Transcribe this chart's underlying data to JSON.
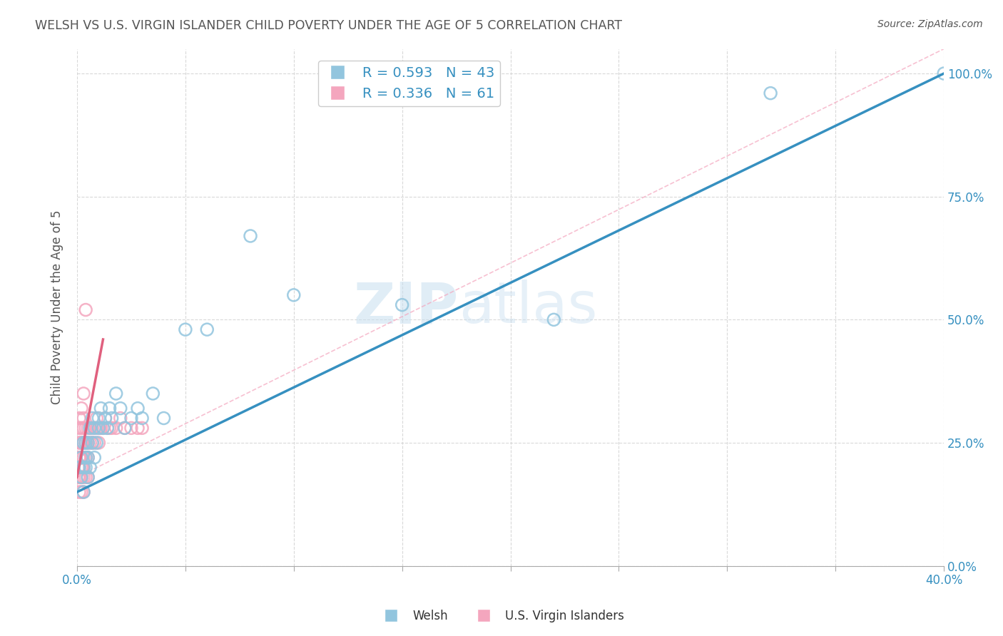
{
  "title": "WELSH VS U.S. VIRGIN ISLANDER CHILD POVERTY UNDER THE AGE OF 5 CORRELATION CHART",
  "source": "Source: ZipAtlas.com",
  "ylabel": "Child Poverty Under the Age of 5",
  "xlim": [
    0.0,
    0.4
  ],
  "ylim": [
    0.0,
    1.05
  ],
  "xticks": [
    0.0,
    0.05,
    0.1,
    0.15,
    0.2,
    0.25,
    0.3,
    0.35,
    0.4
  ],
  "yticks": [
    0.0,
    0.25,
    0.5,
    0.75,
    1.0
  ],
  "ytick_labels": [
    "0.0%",
    "25.0%",
    "50.0%",
    "75.0%",
    "100.0%"
  ],
  "xtick_labels": [
    "0.0%",
    "",
    "",
    "",
    "",
    "",
    "",
    "",
    "40.0%"
  ],
  "welsh_R": 0.593,
  "welsh_N": 43,
  "vi_R": 0.336,
  "vi_N": 61,
  "welsh_color": "#92c5de",
  "vi_color": "#f4a6be",
  "welsh_line_color": "#3690c0",
  "vi_line_color": "#e0607e",
  "vi_dashed_color": "#f4a6be",
  "welsh_scatter_x": [
    0.001,
    0.002,
    0.002,
    0.003,
    0.003,
    0.003,
    0.004,
    0.004,
    0.004,
    0.005,
    0.005,
    0.005,
    0.006,
    0.006,
    0.007,
    0.007,
    0.008,
    0.008,
    0.009,
    0.01,
    0.01,
    0.011,
    0.012,
    0.013,
    0.014,
    0.015,
    0.016,
    0.018,
    0.02,
    0.022,
    0.025,
    0.028,
    0.03,
    0.035,
    0.04,
    0.05,
    0.06,
    0.08,
    0.1,
    0.15,
    0.22,
    0.32,
    0.4
  ],
  "welsh_scatter_y": [
    0.2,
    0.18,
    0.22,
    0.15,
    0.2,
    0.25,
    0.2,
    0.22,
    0.25,
    0.18,
    0.22,
    0.25,
    0.2,
    0.28,
    0.25,
    0.3,
    0.22,
    0.28,
    0.25,
    0.3,
    0.28,
    0.32,
    0.28,
    0.3,
    0.28,
    0.32,
    0.3,
    0.35,
    0.32,
    0.28,
    0.3,
    0.32,
    0.3,
    0.35,
    0.3,
    0.48,
    0.48,
    0.67,
    0.55,
    0.53,
    0.5,
    0.96,
    1.0
  ],
  "vi_scatter_x": [
    0.0005,
    0.0005,
    0.001,
    0.001,
    0.001,
    0.001,
    0.001,
    0.001,
    0.001,
    0.001,
    0.0015,
    0.0015,
    0.0015,
    0.002,
    0.002,
    0.002,
    0.002,
    0.002,
    0.002,
    0.002,
    0.0025,
    0.0025,
    0.003,
    0.003,
    0.003,
    0.003,
    0.003,
    0.003,
    0.003,
    0.003,
    0.004,
    0.004,
    0.004,
    0.004,
    0.005,
    0.005,
    0.005,
    0.005,
    0.006,
    0.006,
    0.007,
    0.007,
    0.008,
    0.008,
    0.009,
    0.009,
    0.01,
    0.01,
    0.011,
    0.012,
    0.013,
    0.014,
    0.015,
    0.016,
    0.018,
    0.02,
    0.022,
    0.025,
    0.028,
    0.03,
    0.004
  ],
  "vi_scatter_y": [
    0.18,
    0.2,
    0.15,
    0.18,
    0.2,
    0.22,
    0.22,
    0.25,
    0.28,
    0.3,
    0.18,
    0.22,
    0.25,
    0.15,
    0.18,
    0.2,
    0.22,
    0.25,
    0.28,
    0.32,
    0.2,
    0.25,
    0.15,
    0.18,
    0.2,
    0.22,
    0.25,
    0.28,
    0.3,
    0.35,
    0.18,
    0.22,
    0.25,
    0.28,
    0.18,
    0.22,
    0.25,
    0.28,
    0.25,
    0.28,
    0.25,
    0.28,
    0.25,
    0.28,
    0.28,
    0.3,
    0.25,
    0.28,
    0.28,
    0.28,
    0.3,
    0.28,
    0.28,
    0.28,
    0.28,
    0.3,
    0.28,
    0.28,
    0.28,
    0.28,
    0.52
  ],
  "welsh_line_x": [
    0.0,
    0.4
  ],
  "welsh_line_y": [
    0.15,
    1.0
  ],
  "vi_solid_line_x": [
    0.0,
    0.012
  ],
  "vi_solid_line_y": [
    0.18,
    0.46
  ],
  "vi_dashed_line_x": [
    0.0,
    0.4
  ],
  "vi_dashed_line_y": [
    0.18,
    1.05
  ],
  "watermark_zip": "ZIP",
  "watermark_atlas": "atlas",
  "background_color": "#ffffff",
  "grid_color": "#d0d0d0",
  "title_color": "#555555",
  "axis_label_color": "#3690c0",
  "legend_welsh_label": "Welsh",
  "legend_vi_label": "U.S. Virgin Islanders"
}
